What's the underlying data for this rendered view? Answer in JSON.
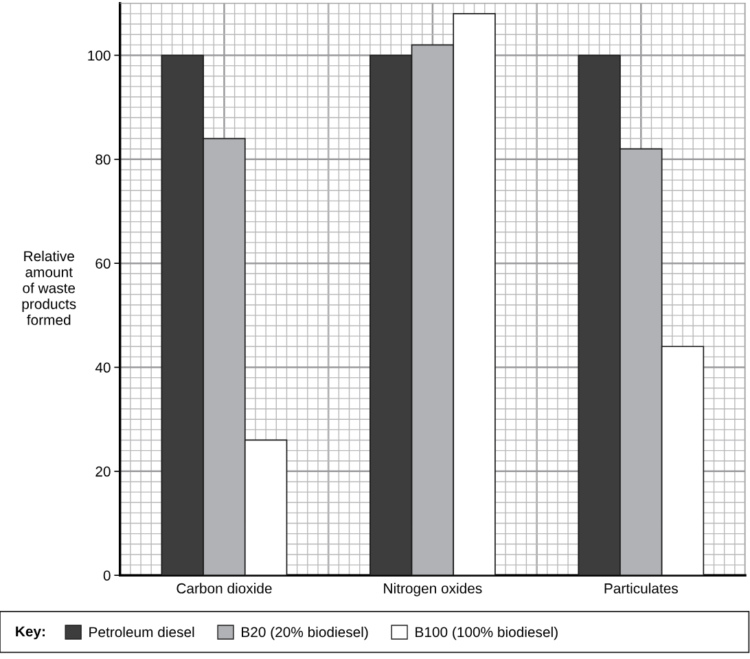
{
  "chart_data": {
    "type": "bar",
    "ylabel": "Relative\namount\nof waste\nproducts\nformed",
    "legend_title": "Key:",
    "categories": [
      "Carbon dioxide",
      "Nitrogen oxides",
      "Particulates"
    ],
    "series": [
      {
        "name": "Petroleum diesel",
        "color": "#3d3d3d",
        "values": [
          100,
          100,
          100
        ]
      },
      {
        "name": "B20 (20% biodiesel)",
        "color": "#b1b2b5",
        "values": [
          84,
          102,
          82
        ]
      },
      {
        "name": "B100 (100% biodiesel)",
        "color": "#ffffff",
        "values": [
          26,
          108,
          44
        ]
      }
    ],
    "ylim": [
      0,
      110
    ],
    "yticks": [
      0,
      20,
      40,
      60,
      80,
      100
    ],
    "grid": true,
    "legend": "bottom"
  }
}
